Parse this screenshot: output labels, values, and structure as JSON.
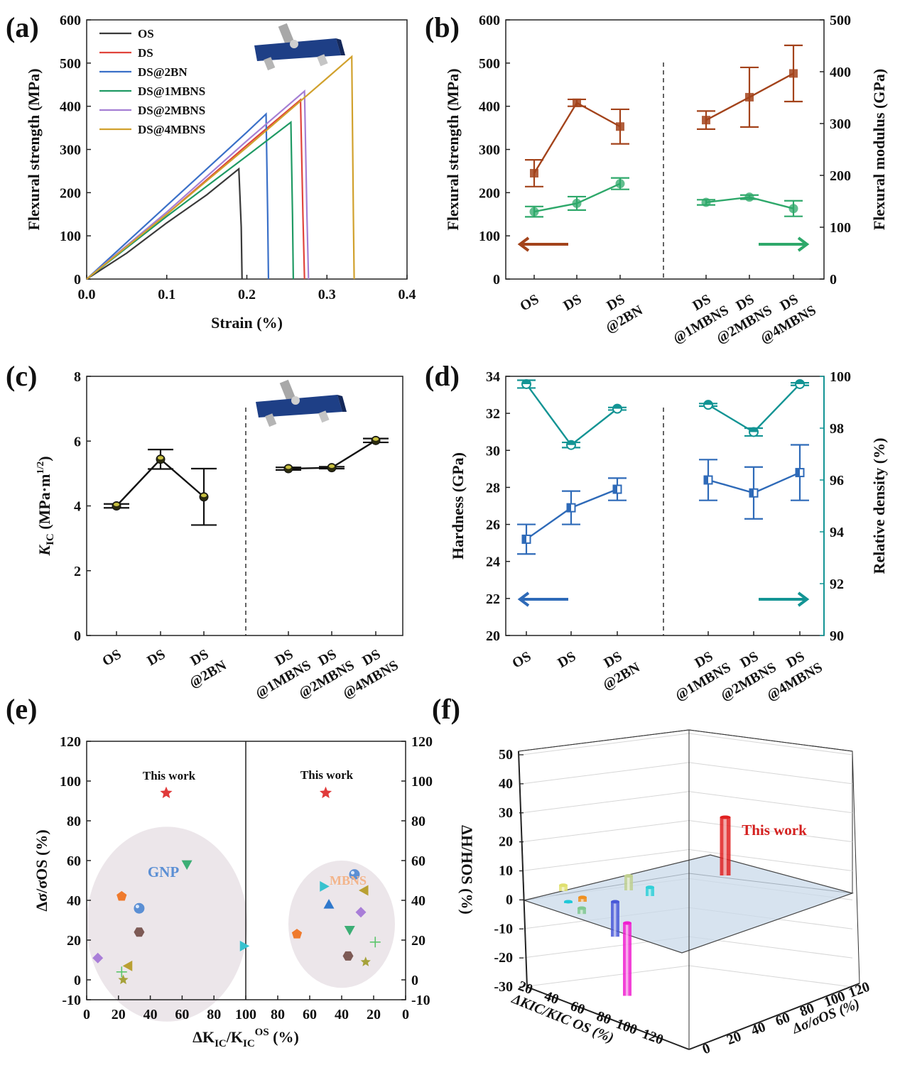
{
  "panels": {
    "a": {
      "label": "(a)",
      "chart_data": {
        "type": "line",
        "title": "",
        "xlabel": "Strain (%)",
        "ylabel": "Flexural strength (MPa)",
        "xlim": [
          0,
          0.4
        ],
        "ylim": [
          0,
          600
        ],
        "xticks": [
          "0.0",
          "0.1",
          "0.2",
          "0.3",
          "0.4"
        ],
        "yticks": [
          "0",
          "100",
          "200",
          "300",
          "400",
          "500",
          "600"
        ],
        "series": [
          {
            "name": "OS",
            "color": "#3a3a3a",
            "x": [
              0,
              0.05,
              0.1,
              0.15,
              0.19,
              0.193,
              0.194
            ],
            "y": [
              0,
              60,
              130,
              195,
              255,
              120,
              0
            ]
          },
          {
            "name": "DS",
            "color": "#e0443c",
            "x": [
              0,
              0.1,
              0.2,
              0.267,
              0.27,
              0.272
            ],
            "y": [
              0,
              150,
              310,
              415,
              150,
              0
            ]
          },
          {
            "name": "DS@2BN",
            "color": "#3a70c8",
            "x": [
              0,
              0.1,
              0.2,
              0.224,
              0.226,
              0.227
            ],
            "y": [
              0,
              170,
              340,
              382,
              150,
              0
            ]
          },
          {
            "name": "DS@1MBNS",
            "color": "#1f9a64",
            "x": [
              0,
              0.1,
              0.2,
              0.255,
              0.257,
              0.258
            ],
            "y": [
              0,
              145,
              285,
              363,
              150,
              0
            ]
          },
          {
            "name": "DS@2MBNS",
            "color": "#a57fd4",
            "x": [
              0,
              0.1,
              0.2,
              0.272,
              0.275,
              0.277
            ],
            "y": [
              0,
              155,
              320,
              435,
              150,
              0
            ]
          },
          {
            "name": "DS@4MBNS",
            "color": "#d1a12d",
            "x": [
              0,
              0.1,
              0.2,
              0.3,
              0.331,
              0.333,
              0.334
            ],
            "y": [
              0,
              150,
              305,
              465,
              515,
              150,
              0
            ]
          }
        ]
      }
    },
    "b": {
      "label": "(b)",
      "chart_data": {
        "type": "line",
        "categories": [
          "OS",
          "DS",
          "DS\n@2BN",
          "DS\n@1MBNS",
          "DS\n@2MBNS",
          "DS\n@4MBNS"
        ],
        "ylabel": "Flexural strength (MPa)",
        "y2label": "Flexural modulus (GPa)",
        "ylim": [
          0,
          600
        ],
        "y2lim": [
          0,
          500
        ],
        "yticks": [
          "0",
          "100",
          "200",
          "300",
          "400",
          "500",
          "600"
        ],
        "y2ticks": [
          "0",
          "100",
          "200",
          "300",
          "400",
          "500"
        ],
        "series": [
          {
            "name": "Flexural strength",
            "axis": "left",
            "color": "#a3431b",
            "values": [
              245,
              408,
              353,
              368,
              421,
              476
            ],
            "errors": [
              31,
              8,
              40,
              21,
              69,
              65
            ]
          },
          {
            "name": "Flexural modulus",
            "axis": "right",
            "color": "#2ea86a",
            "values": [
              130,
              146,
              184,
              148,
              158,
              136
            ],
            "errors": [
              10,
              13,
              11,
              5,
              4,
              15
            ]
          }
        ]
      }
    },
    "c": {
      "label": "(c)",
      "chart_data": {
        "type": "line",
        "categories": [
          "OS",
          "DS",
          "DS\n@2BN",
          "DS\n@1MBNS",
          "DS\n@2MBNS",
          "DS\n@4MBNS"
        ],
        "ylabel": "K_IC (MPa·m^1/2)",
        "ylim": [
          0,
          8
        ],
        "yticks": [
          "0",
          "2",
          "4",
          "6",
          "8"
        ],
        "series": [
          {
            "name": "KIC",
            "color": "#111111",
            "values": [
              4.0,
              5.44,
              4.28,
              5.15,
              5.18,
              6.02
            ],
            "errors": [
              0.06,
              0.3,
              0.87,
              0.04,
              0.03,
              0.06
            ]
          }
        ]
      }
    },
    "d": {
      "label": "(d)",
      "chart_data": {
        "type": "line",
        "categories": [
          "OS",
          "DS",
          "DS\n@2BN",
          "DS\n@1MBNS",
          "DS\n@2MBNS",
          "DS\n@4MBNS"
        ],
        "ylabel": "Hardness (GPa)",
        "y2label": "Relative density (%)",
        "ylim": [
          20,
          34
        ],
        "y2lim": [
          90,
          100
        ],
        "yticks": [
          "20",
          "22",
          "24",
          "26",
          "28",
          "30",
          "32",
          "34"
        ],
        "y2ticks": [
          "90",
          "92",
          "94",
          "96",
          "98",
          "100"
        ],
        "series": [
          {
            "name": "Hardness",
            "axis": "left",
            "color": "#2e6ab8",
            "values": [
              25.2,
              26.9,
              27.9,
              28.4,
              27.7,
              28.8
            ],
            "errors": [
              0.8,
              0.9,
              0.6,
              1.1,
              1.4,
              1.5
            ]
          },
          {
            "name": "Relative density",
            "axis": "right",
            "color": "#139494",
            "values": [
              99.7,
              97.35,
              98.75,
              98.9,
              97.85,
              99.7
            ],
            "errors": [
              0.15,
              0.1,
              0.05,
              0.05,
              0.15,
              0.05
            ]
          }
        ]
      }
    },
    "e": {
      "label": "(e)",
      "chart_data": {
        "type": "scatter",
        "xlabel_main": "ΔK",
        "xlabel_sub": "IC",
        "xlabel_mid": "/K",
        "xlabel_sup": "OS",
        "xlabel_tail": " (%)",
        "ylabel": "Δσ/σOS (%)",
        "ylim": [
          -10,
          120
        ],
        "yticks": [
          "-10",
          "0",
          "20",
          "40",
          "60",
          "80",
          "100",
          "120"
        ],
        "xticks_left": [
          "0",
          "20",
          "40",
          "60",
          "80",
          "100"
        ],
        "xticks_right": [
          "80",
          "60",
          "40",
          "20",
          "0"
        ],
        "left": {
          "group_label": "GNP",
          "this_work_label": "This work",
          "this_work": [
            50,
            94
          ],
          "points": [
            {
              "shape": "pentagon",
              "color": "#ef7a2d",
              "x": 22,
              "y": 42
            },
            {
              "shape": "sphere",
              "color": "#5b8fd4",
              "x": 33,
              "y": 36
            },
            {
              "shape": "hexagon",
              "color": "#7d5a55",
              "x": 33,
              "y": 24
            },
            {
              "shape": "diamond",
              "color": "#a97ed8",
              "x": 7,
              "y": 11
            },
            {
              "shape": "tri-left",
              "color": "#b9a033",
              "x": 26,
              "y": 7
            },
            {
              "shape": "plus",
              "color": "#5cc56b",
              "x": 22,
              "y": 4
            },
            {
              "shape": "star",
              "color": "#a6a23a",
              "x": 23,
              "y": 0
            },
            {
              "shape": "tri-down",
              "color": "#3cae75",
              "x": 63,
              "y": 58
            },
            {
              "shape": "tri-right",
              "color": "#38c2cf",
              "x": 99,
              "y": 17
            }
          ]
        },
        "right": {
          "group_label": "MBNS",
          "this_work_label": "This work",
          "this_work": [
            50,
            94
          ],
          "points": [
            {
              "shape": "sphere",
              "color": "#5b8fd4",
              "x": 32,
              "y": 53
            },
            {
              "shape": "tri-right",
              "color": "#38c2cf",
              "x": 51,
              "y": 47
            },
            {
              "shape": "tri-left",
              "color": "#b9a033",
              "x": 26,
              "y": 45
            },
            {
              "shape": "triangle",
              "color": "#2f78cc",
              "x": 48,
              "y": 38
            },
            {
              "shape": "diamond",
              "color": "#a97ed8",
              "x": 28,
              "y": 34
            },
            {
              "shape": "tri-down",
              "color": "#3cae75",
              "x": 35,
              "y": 25
            },
            {
              "shape": "pentagon",
              "color": "#ef7a2d",
              "x": 68,
              "y": 23
            },
            {
              "shape": "plus",
              "color": "#5cc56b",
              "x": 19,
              "y": 19
            },
            {
              "shape": "hexagon",
              "color": "#7d5a55",
              "x": 36,
              "y": 12
            },
            {
              "shape": "star",
              "color": "#a6a23a",
              "x": 25,
              "y": 9
            }
          ]
        }
      }
    },
    "f": {
      "label": "(f)",
      "chart_data": {
        "type": "bar3d",
        "zlabel": "ΔH/HOS (%)",
        "xlabel": "ΔKIC/KIC OS (%)",
        "ylabel": "Δσ/σOS (%)",
        "zlim": [
          -30,
          50
        ],
        "zticks": [
          "-30",
          "-20",
          "-10",
          "0",
          "10",
          "20",
          "30",
          "40",
          "50"
        ],
        "xticks": [
          "20",
          "40",
          "60",
          "80",
          "100",
          "120"
        ],
        "yticks": [
          "0",
          "20",
          "40",
          "60",
          "80",
          "100",
          "120"
        ],
        "annotation": "This work",
        "bars": [
          {
            "color": "#e02020",
            "value": 20,
            "highlight": true
          },
          {
            "color": "#e0e070",
            "value": 2
          },
          {
            "color": "#20c8d8",
            "value": 0.5
          },
          {
            "color": "#f09020",
            "value": 1.5
          },
          {
            "color": "#80c890",
            "value": -2
          },
          {
            "color": "#4858d8",
            "value": -12
          },
          {
            "color": "#c0d090",
            "value": 5
          },
          {
            "color": "#30d0d8",
            "value": 3
          },
          {
            "color": "#f020d0",
            "value": -25
          }
        ]
      }
    }
  }
}
